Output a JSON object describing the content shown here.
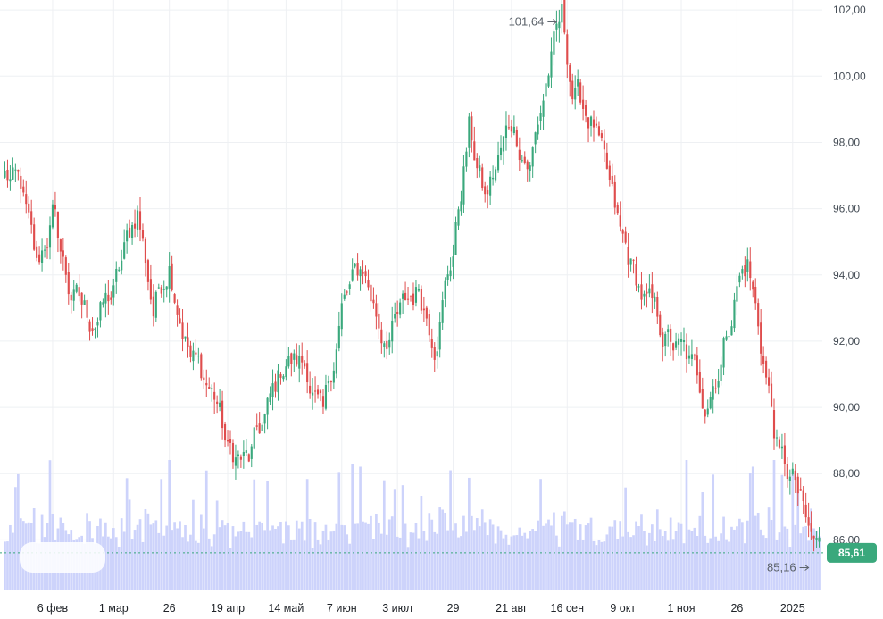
{
  "chart_data": {
    "type": "candlestick",
    "y_axis": {
      "ticks": [
        "102,00",
        "100,00",
        "98,00",
        "96,00",
        "94,00",
        "92,00",
        "90,00",
        "88,00",
        "86,00"
      ],
      "tick_values": [
        102,
        100,
        98,
        96,
        94,
        92,
        90,
        88,
        86
      ],
      "range": [
        84.5,
        102.3
      ],
      "side": "right"
    },
    "x_axis": {
      "labels": [
        "6 фев",
        "1 мар",
        "26",
        "19 апр",
        "14 май",
        "7 июн",
        "3 июл",
        "29",
        "21 авг",
        "16 сен",
        "9 окт",
        "1 ноя",
        "26",
        "2025"
      ],
      "label_candle_index": [
        18,
        41,
        62,
        84,
        106,
        127,
        148,
        169,
        191,
        212,
        233,
        255,
        276,
        297
      ]
    },
    "grid": true,
    "candle_count": 308,
    "price_anchors": [
      {
        "i": 0,
        "p": 97.0
      },
      {
        "i": 6,
        "p": 96.5
      },
      {
        "i": 12,
        "p": 94.0
      },
      {
        "i": 18,
        "p": 95.8
      },
      {
        "i": 24,
        "p": 93.6
      },
      {
        "i": 32,
        "p": 92.6
      },
      {
        "i": 41,
        "p": 93.4
      },
      {
        "i": 50,
        "p": 96.0
      },
      {
        "i": 56,
        "p": 93.0
      },
      {
        "i": 62,
        "p": 94.6
      },
      {
        "i": 70,
        "p": 91.6
      },
      {
        "i": 80,
        "p": 90.2
      },
      {
        "i": 84,
        "p": 88.6
      },
      {
        "i": 92,
        "p": 88.3
      },
      {
        "i": 100,
        "p": 90.0
      },
      {
        "i": 106,
        "p": 91.5
      },
      {
        "i": 114,
        "p": 91.2
      },
      {
        "i": 120,
        "p": 89.4
      },
      {
        "i": 127,
        "p": 93.0
      },
      {
        "i": 135,
        "p": 94.2
      },
      {
        "i": 142,
        "p": 92.3
      },
      {
        "i": 148,
        "p": 92.6
      },
      {
        "i": 156,
        "p": 93.6
      },
      {
        "i": 162,
        "p": 92.3
      },
      {
        "i": 169,
        "p": 94.8
      },
      {
        "i": 175,
        "p": 98.4
      },
      {
        "i": 181,
        "p": 96.2
      },
      {
        "i": 191,
        "p": 98.6
      },
      {
        "i": 198,
        "p": 97.4
      },
      {
        "i": 205,
        "p": 100.2
      },
      {
        "i": 210,
        "p": 101.64
      },
      {
        "i": 214,
        "p": 99.6
      },
      {
        "i": 222,
        "p": 98.6
      },
      {
        "i": 226,
        "p": 97.0
      },
      {
        "i": 232,
        "p": 95.0
      },
      {
        "i": 240,
        "p": 93.4
      },
      {
        "i": 248,
        "p": 92.2
      },
      {
        "i": 256,
        "p": 91.5
      },
      {
        "i": 264,
        "p": 90.3
      },
      {
        "i": 270,
        "p": 91.6
      },
      {
        "i": 276,
        "p": 93.8
      },
      {
        "i": 280,
        "p": 94.4
      },
      {
        "i": 286,
        "p": 91.5
      },
      {
        "i": 292,
        "p": 88.4
      },
      {
        "i": 298,
        "p": 87.6
      },
      {
        "i": 303,
        "p": 86.0
      },
      {
        "i": 307,
        "p": 85.61
      }
    ],
    "last_price": 85.61,
    "last_price_label": "85,61",
    "annotations": [
      {
        "text": "101,64",
        "value": 101.64,
        "candle_index": 210,
        "arrow": "right"
      },
      {
        "text": "85,16",
        "value": 85.16,
        "candle_index": 305,
        "arrow": "right"
      }
    ],
    "volume": {
      "shown": true,
      "baseline_value": 85.61
    },
    "colors": {
      "up": "#3aa87c",
      "down": "#df4d4d",
      "volume": "#cdd3fb",
      "grid": "#eef0f3",
      "badge": "#3aa87c",
      "dotted_line": "#3aa87c"
    }
  }
}
